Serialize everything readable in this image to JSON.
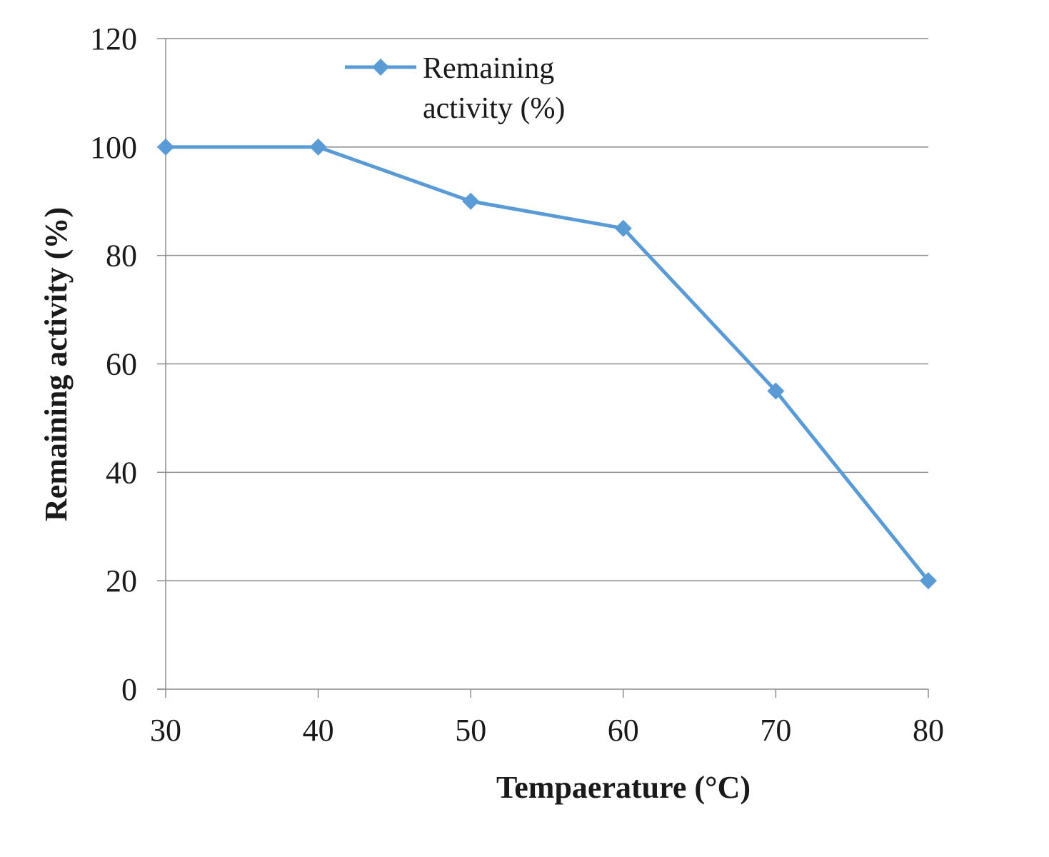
{
  "chart_data": {
    "type": "line",
    "xlabel": "Tempaerature (°C)",
    "ylabel": "Remaining activity (%)",
    "x": [
      30,
      40,
      50,
      60,
      70,
      80
    ],
    "x_ticks": [
      "30",
      "40",
      "50",
      "60",
      "70",
      "80"
    ],
    "y_ticks": [
      "0",
      "20",
      "40",
      "60",
      "80",
      "100",
      "120"
    ],
    "xlim": [
      30,
      80
    ],
    "ylim": [
      0,
      120
    ],
    "grid": "horizontal",
    "legend_position": "top-left",
    "series": [
      {
        "name": "Remaining activity (%)",
        "name_lines": [
          "Remaining",
          "activity (%)"
        ],
        "values": [
          100,
          100,
          90,
          85,
          55,
          20
        ],
        "color": "#5b9bd5",
        "marker": "diamond"
      }
    ]
  }
}
